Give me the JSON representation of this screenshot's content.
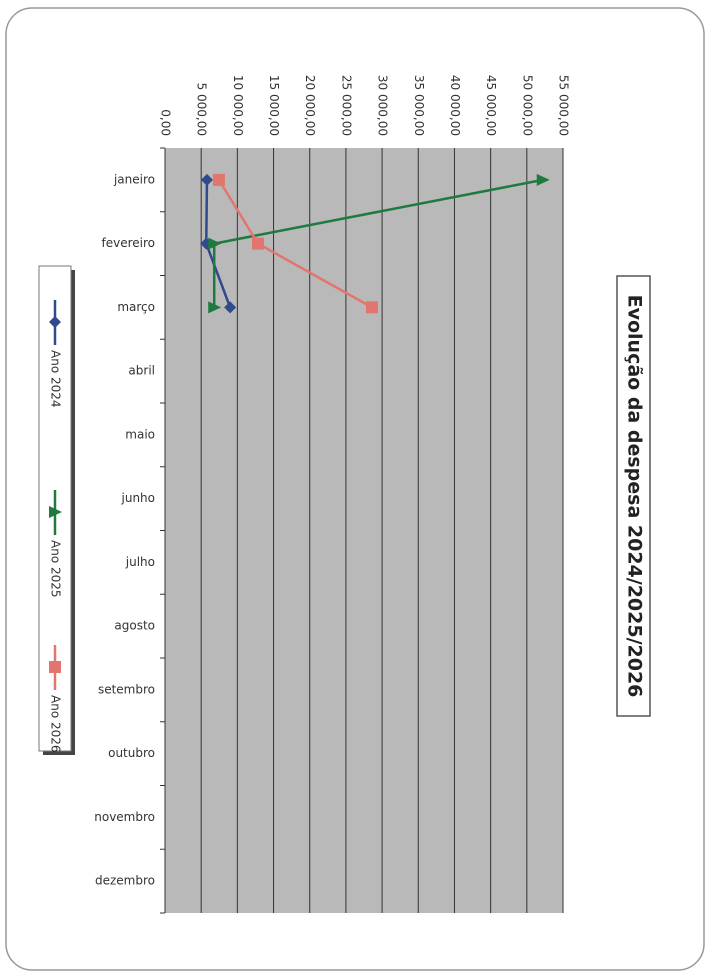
{
  "chart_data": {
    "type": "line",
    "title": "Evolução da despesa 2024/2025/2026",
    "categories": [
      "janeiro",
      "fevereiro",
      "março",
      "abril",
      "maio",
      "junho",
      "julho",
      "agosto",
      "setembro",
      "outubro",
      "novembro",
      "dezembro"
    ],
    "series": [
      {
        "name": "Ano 2024",
        "color": "#2f4b8c",
        "marker": "diamond",
        "values": [
          5800,
          5700,
          9000,
          null,
          null,
          null,
          null,
          null,
          null,
          null,
          null,
          null
        ]
      },
      {
        "name": "Ano 2025",
        "color": "#1f7a40",
        "marker": "triangle",
        "values": [
          52200,
          6800,
          6800,
          null,
          null,
          null,
          null,
          null,
          null,
          null,
          null,
          null
        ]
      },
      {
        "name": "Ano 2026",
        "color": "#e2766f",
        "marker": "square",
        "values": [
          7450,
          12850,
          28600,
          null,
          null,
          null,
          null,
          null,
          null,
          null,
          null,
          null
        ]
      }
    ],
    "ylim": [
      0,
      55000
    ],
    "yticks": [
      {
        "value": 0,
        "label": "0,00"
      },
      {
        "value": 5000,
        "label": "5 000,00"
      },
      {
        "value": 10000,
        "label": "10 000,00"
      },
      {
        "value": 15000,
        "label": "15 000,00"
      },
      {
        "value": 20000,
        "label": "20 000,00"
      },
      {
        "value": 25000,
        "label": "25 000,00"
      },
      {
        "value": 30000,
        "label": "30 000,00"
      },
      {
        "value": 35000,
        "label": "35 000,00"
      },
      {
        "value": 40000,
        "label": "40 000,00"
      },
      {
        "value": 45000,
        "label": "45 000,00"
      },
      {
        "value": 50000,
        "label": "50 000,00"
      },
      {
        "value": 55000,
        "label": "55 000,00"
      }
    ],
    "grid": true
  }
}
